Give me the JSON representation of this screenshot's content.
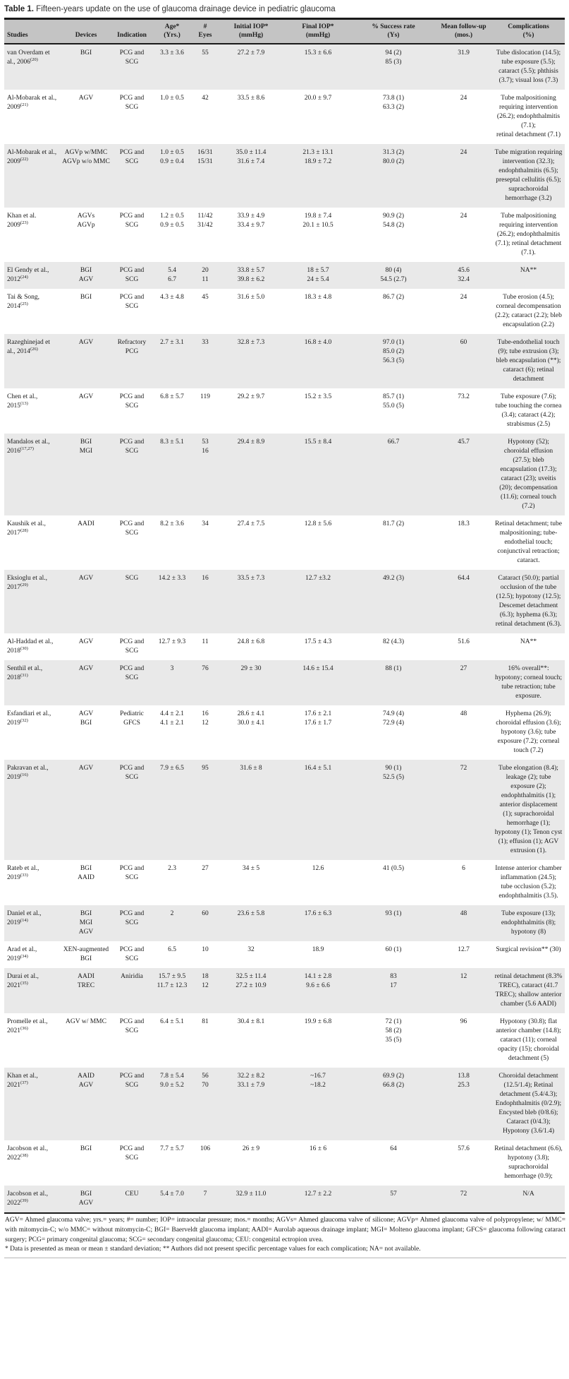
{
  "title": {
    "label": "Table 1.",
    "text": " Fifteen-years update on the use of glaucoma drainage device in pediatric glaucoma"
  },
  "table": {
    "columns": [
      "Studies",
      "Devices",
      "Indication",
      "Age*\n(Yrs.)",
      "#\nEyes",
      "Initial IOP*\n(mmHg)",
      "Final IOP*\n(mmHg)",
      "% Success rate\n(Ys)",
      "Mean follow-up\n(mos.)",
      "Complications\n(%)"
    ],
    "rows": [
      {
        "study": "van Overdam et al., 2006",
        "ref": "(20)",
        "devices": "BGI",
        "indication": "PCG and SCG",
        "age": "3.3 ± 3.6",
        "eyes": "55",
        "iop_initial": "27.2 ± 7.9",
        "iop_final": "15.3 ± 6.6",
        "success": "94 (2)\n85 (3)",
        "followup": "31.9",
        "complications": "Tube dislocation (14.5); tube exposure (5.5); cataract (5.5); phthisis (3.7); visual loss (7.3)"
      },
      {
        "study": "Al-Mobarak et al., 2009",
        "ref": "(21)",
        "devices": "AGV",
        "indication": "PCG and SCG",
        "age": "1.0 ± 0.5",
        "eyes": "42",
        "iop_initial": "33.5 ± 8.6",
        "iop_final": "20.0 ± 9.7",
        "success": "73.8 (1)\n63.3 (2)",
        "followup": "24",
        "complications": "Tube malpositioning requiring intervention (26.2); endophthalmitis (7.1);\nretinal detachment (7.1)"
      },
      {
        "study": "Al-Mobarak et al., 2009",
        "ref": "(22)",
        "devices": "AGVp w/MMC\nAGVp w/o MMC",
        "indication": "PCG and SCG",
        "age": "1.0 ± 0.5\n0.9 ± 0.4",
        "eyes": "16/31\n15/31",
        "iop_initial": "35.0 ± 11.4\n31.6 ± 7.4",
        "iop_final": "21.3 ± 13.1\n18.9 ± 7.2",
        "success": "31.3 (2)\n80.0 (2)",
        "followup": "24",
        "complications": "Tube migration requiring intervention (32.3); endophthalmitis (6.5); preseptal cellulitis (6.5); suprachoroidal hemorrhage (3.2)"
      },
      {
        "study": "Khan et al. 2009",
        "ref": "(23)",
        "devices": "AGVs\nAGVp",
        "indication": "PCG and SCG",
        "age": "1.2 ± 0.5\n0.9 ± 0.5",
        "eyes": "11/42\n31/42",
        "iop_initial": "33.9 ± 4.9\n33.4 ± 9.7",
        "iop_final": "19.8 ± 7.4\n20.1 ± 10.5",
        "success": "90.9 (2)\n54.8 (2)",
        "followup": "24",
        "complications": "Tube malpositioning requiring intervention (26.2); endophthalmitis (7.1); retinal detachment (7.1)."
      },
      {
        "study": "El Gendy et al., 2012",
        "ref": "(24)",
        "devices": "BGI\nAGV",
        "indication": "PCG and SCG",
        "age": "5.4\n6.7",
        "eyes": "20\n11",
        "iop_initial": "33.8 ± 5.7\n39.8 ± 6.2",
        "iop_final": "18 ± 5.7\n24 ± 5.4",
        "success": "80 (4)\n54.5 (2.7)",
        "followup": "45.6\n32.4",
        "complications": "NA**"
      },
      {
        "study": "Tai & Song, 2014",
        "ref": "(25)",
        "devices": "BGI",
        "indication": "PCG and SCG",
        "age": "4.3 ± 4.8",
        "eyes": "45",
        "iop_initial": "31.6 ± 5.0",
        "iop_final": "18.3 ± 4.8",
        "success": "86.7 (2)",
        "followup": "24",
        "complications": "Tube erosion (4.5); corneal decompensation (2.2); cataract (2.2); bleb encapsulation (2.2)"
      },
      {
        "study": "Razeghinejad et al., 2014",
        "ref": "(26)",
        "devices": "AGV",
        "indication": "Refractory PCG",
        "age": "2.7 ± 3.1",
        "eyes": "33",
        "iop_initial": "32.8 ± 7.3",
        "iop_final": "16.8 ± 4.0",
        "success": "97.0 (1)\n85.0 (2)\n56.3 (5)",
        "followup": "60",
        "complications": "Tube-endothelial touch (9); tube extrusion (3); bleb encapsulation (**); cataract (6); retinal detachment"
      },
      {
        "study": "Chen et al., 2015",
        "ref": "(13)",
        "devices": "AGV",
        "indication": "PCG and SCG",
        "age": "6.8 ± 5.7",
        "eyes": "119",
        "iop_initial": "29.2 ± 9.7",
        "iop_final": "15.2 ± 3.5",
        "success": "85.7 (1)\n55.0 (5)",
        "followup": "73.2",
        "complications": "Tube exposure (7.6); tube touching the cornea (3.4); cataract (4.2); strabismus (2.5)"
      },
      {
        "study": "Mandalos et al., 2016",
        "ref": "(17,27)",
        "devices": "BGI\nMGI",
        "indication": "PCG and SCG",
        "age": "8.3 ± 5.1",
        "eyes": "53\n16",
        "iop_initial": "29.4 ± 8.9",
        "iop_final": "15.5 ± 8.4",
        "success": "66.7",
        "followup": "45.7",
        "complications": "Hypotony (52); choroidal effusion (27.5); bleb encapsulation (17.3); cataract (23); uveitis (20); decompensation (11.6); corneal touch (7.2)"
      },
      {
        "study": "Kaushik et al., 2017",
        "ref": "(28)",
        "devices": "AADI",
        "indication": "PCG and SCG",
        "age": "8.2 ± 3.6",
        "eyes": "34",
        "iop_initial": "27.4 ± 7.5",
        "iop_final": "12.8 ± 5.6",
        "success": "81.7 (2)",
        "followup": "18.3",
        "complications": "Retinal detachment; tube malpositioning; tube-endothelial touch; conjunctival retraction; cataract."
      },
      {
        "study": "Eksioglu et al., 2017",
        "ref": "(29)",
        "devices": "AGV",
        "indication": "SCG",
        "age": "14.2 ± 3.3",
        "eyes": "16",
        "iop_initial": "33.5 ± 7.3",
        "iop_final": "12.7 ±3.2",
        "success": "49.2 (3)",
        "followup": "64.4",
        "complications": "Cataract (50.0); partial occlusion of the tube (12.5); hypotony (12.5); Descemet detachment (6.3); hyphema (6.3); retinal detachment (6.3)."
      },
      {
        "study": "Al-Haddad et al., 2018",
        "ref": "(30)",
        "devices": "AGV",
        "indication": "PCG and SCG",
        "age": "12.7 ± 9.3",
        "eyes": "11",
        "iop_initial": "24.8 ± 6.8",
        "iop_final": "17.5 ± 4.3",
        "success": "82 (4.3)",
        "followup": "51.6",
        "complications": "NA**"
      },
      {
        "study": "Senthil et al., 2018",
        "ref": "(31)",
        "devices": "AGV",
        "indication": "PCG and SCG",
        "age": "3",
        "eyes": "76",
        "iop_initial": "29 ± 30",
        "iop_final": "14.6 ± 15.4",
        "success": "88 (1)",
        "followup": "27",
        "complications": "16% overall**: hypotony; corneal touch; tube retraction; tube exposure."
      },
      {
        "study": "Esfandiari et al., 2019",
        "ref": "(32)",
        "devices": "AGV\nBGI",
        "indication": "Pediatric GFCS",
        "age": "4.4 ± 2.1\n4.1 ± 2.1",
        "eyes": "16\n12",
        "iop_initial": "28.6 ± 4.1\n30.0 ± 4.1",
        "iop_final": "17.6 ± 2.1\n17.6 ± 1.7",
        "success": "74.9 (4)\n72.9 (4)",
        "followup": "48",
        "complications": "Hyphema (26.9); choroidal effusion (3.6); hypotony (3.6); tube exposure (7.2); corneal touch (7.2)"
      },
      {
        "study": "Pakravan et al., 2019",
        "ref": "(16)",
        "devices": "AGV",
        "indication": "PCG and SCG",
        "age": "7.9 ± 6.5",
        "eyes": "95",
        "iop_initial": "31.6 ± 8",
        "iop_final": "16.4 ± 5.1",
        "success": "90 (1)\n52.5 (5)",
        "followup": "72",
        "complications": "Tube elongation (8.4); leakage (2); tube exposure (2); endophthalmitis (1); anterior displacement (1); suprachoroidal hemorrhage (1); hypotony (1); Tenon cyst (1); effusion (1); AGV extrusion (1)."
      },
      {
        "study": "Rateb et al., 2019",
        "ref": "(33)",
        "devices": "BGI\nAAID",
        "indication": "PCG and SCG",
        "age": "2.3",
        "eyes": "27",
        "iop_initial": "34 ± 5",
        "iop_final": "12.6",
        "success": "41 (0.5)",
        "followup": "6",
        "complications": "Intense anterior chamber inflammation (24.5); tube occlusion (5.2); endophthalmitis (3.5)."
      },
      {
        "study": "Daniel et al., 2019",
        "ref": "(14)",
        "devices": "BGI\nMGI\nAGV",
        "indication": "PCG and SCG",
        "age": "2",
        "eyes": "60",
        "iop_initial": "23.6 ± 5.8",
        "iop_final": "17.6 ± 6.3",
        "success": "93 (1)",
        "followup": "48",
        "complications": "Tube exposure (13); endophthalmitis (8); hypotony (8)"
      },
      {
        "study": "Arad et al., 2019",
        "ref": "(34)",
        "devices": "XEN-augmented BGI",
        "indication": "PCG and SCG",
        "age": "6.5",
        "eyes": "10",
        "iop_initial": "32",
        "iop_final": "18.9",
        "success": "60 (1)",
        "followup": "12.7",
        "complications": "Surgical revision** (30)"
      },
      {
        "study": "Durai et al., 2021",
        "ref": "(35)",
        "devices": "AADI\nTREC",
        "indication": "Aniridia",
        "age": "15.7 ± 9.5\n11.7 ± 12.3",
        "eyes": "18\n12",
        "iop_initial": "32.5 ± 11.4\n27.2 ± 10.9",
        "iop_final": "14.1 ± 2.8\n9.6 ± 6.6",
        "success": "83\n17",
        "followup": "12",
        "complications": "retinal detachment (8.3% TREC), cataract (41.7 TREC); shallow anterior chamber (5.6 AADI)"
      },
      {
        "study": "Promelle et al., 2021",
        "ref": "(36)",
        "devices": "AGV w/ MMC",
        "indication": "PCG and SCG",
        "age": "6.4 ± 5.1",
        "eyes": "81",
        "iop_initial": "30.4 ± 8.1",
        "iop_final": "19.9 ± 6.8",
        "success": "72 (1)\n58 (2)\n35 (5)",
        "followup": "96",
        "complications": "Hypotony (30.8); flat anterior chamber (14.8); cataract (11); corneal opacity (15); choroidal detachment (5)"
      },
      {
        "study": "Khan et al., 2021",
        "ref": "(37)",
        "devices": "AAID\nAGV",
        "indication": "PCG and SCG",
        "age": "7.8 ± 5.4\n9.0 ± 5.2",
        "eyes": "56\n70",
        "iop_initial": "32.2 ± 8.2\n33.1 ± 7.9",
        "iop_final": "~16.7\n~18.2",
        "success": "69.9 (2)\n66.8 (2)",
        "followup": "13.8\n25.3",
        "complications": "Choroidal detachment (12.5/1.4); Retinal detachment (5.4/4.3); Endophthalmitis (0/2.9); Encysted bleb (0/8.6); Cataract (0/4.3); Hypotony (3.6/1.4)"
      },
      {
        "study": "Jacobson et al., 2022",
        "ref": "(38)",
        "devices": "BGI",
        "indication": "PCG and SCG",
        "age": "7.7 ± 5.7",
        "eyes": "106",
        "iop_initial": "26 ± 9",
        "iop_final": "16 ± 6",
        "success": "64",
        "followup": "57.6",
        "complications": "Retinal detachment (6.6), hypotony (3.8); suprachoroidal hemorrhage (0.9);"
      },
      {
        "study": "Jacobson et al., 2022",
        "ref": "(39)",
        "devices": "BGI\nAGV",
        "indication": "CEU",
        "age": "5.4 ± 7.0",
        "eyes": "7",
        "iop_initial": "32.9 ± 11.0",
        "iop_final": "12.7 ± 2.2",
        "success": "57",
        "followup": "72",
        "complications": "N/A"
      }
    ]
  },
  "footnotes": {
    "abbreviations": "AGV= Ahmed glaucoma valve; yrs.= years; #= number; IOP= intraocular pressure; mos.= months; AGVs= Ahmed glaucoma valve of silicone; AGVp= Ahmed glaucoma valve of polypropylene; w/ MMC= with mitomycin-C; w/o MMC= without mitomycin-C; BGI= Baerveldt glaucoma implant; AADI= Aurolab aqueous drainage implant; MGI= Molteno glaucoma implant; GFCS= glaucoma following cataract surgery; PCG= primary congenital glaucoma; SCG= secondary congenital glaucoma; CEU: congenital ectropion uvea.",
    "notes": "* Data is presented as mean or mean ± standard deviation; ** Authors did not present specific percentage values for each complication; NA= not available."
  },
  "colors": {
    "header_bg": "#c4c4c4",
    "odd_row_bg": "#e9e9e9",
    "even_row_bg": "#ffffff",
    "rule": "#1a1a1a"
  }
}
